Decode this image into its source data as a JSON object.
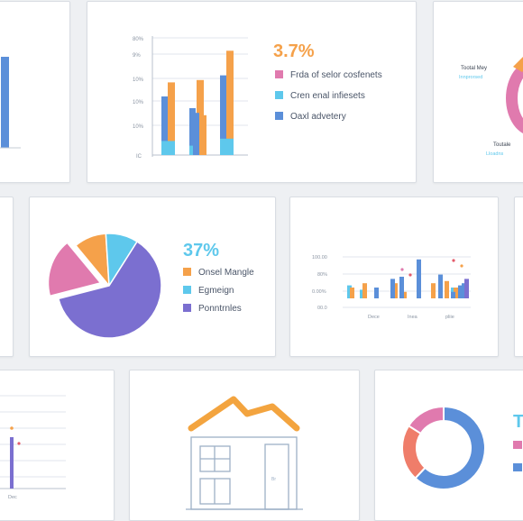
{
  "colors": {
    "orange": "#f5a14a",
    "blue": "#5b8fd9",
    "cyan": "#5ec8ec",
    "pink": "#e07aae",
    "purple": "#7b6fd0",
    "coral": "#ef7d6a",
    "red": "#e45b6a",
    "house_orange": "#f3a43f",
    "house_line": "#9db0c6"
  },
  "chart_data": [
    {
      "type": "bar",
      "panel": "top-left (cropped)",
      "values": [
        100
      ],
      "series": [
        {
          "values": [
            100
          ]
        }
      ]
    },
    {
      "type": "bar",
      "panel": "top-center",
      "title": "3.7%",
      "yticks": [
        "80%",
        "9%",
        "10%",
        "10%",
        "10%",
        "IC"
      ],
      "series": [
        {
          "name": "Frda of selor cosfenets",
          "color": "orange",
          "values": [
            62,
            64,
            34,
            89
          ]
        },
        {
          "name": "Cren enal infiesets",
          "color": "cyan",
          "values": [
            12,
            8,
            0,
            14
          ]
        },
        {
          "name": "Oaxl advetery",
          "color": "blue",
          "values": [
            50,
            40,
            36,
            68
          ]
        }
      ],
      "legend": "right"
    },
    {
      "type": "pie",
      "panel": "top-right (cropped)",
      "labels": [
        "Tootal Mey",
        "Innprorsed",
        "Toutale",
        "Lloadns"
      ],
      "colors": [
        "pink",
        "orange"
      ]
    },
    {
      "type": "pie",
      "panel": "middle-left",
      "title": "37%",
      "slices": [
        {
          "name": "Onsel Mangle",
          "color": "orange",
          "value": 10
        },
        {
          "name": "Egmeign",
          "color": "cyan",
          "value": 10
        },
        {
          "name": "Ponntrnles",
          "color": "purple",
          "value": 62
        },
        {
          "name": "",
          "color": "pink",
          "value": 18
        }
      ],
      "legend": "right"
    },
    {
      "type": "bar",
      "panel": "middle-center",
      "yticks": [
        "100.00",
        "80%",
        "0.00%",
        "00.0"
      ],
      "xticks": [
        "Dece",
        "Inea",
        "pliie"
      ],
      "series": [
        {
          "name": "cyan",
          "color": "cyan",
          "values": [
            12,
            8,
            0,
            10,
            0,
            0,
            0,
            0,
            0,
            10,
            0,
            0,
            0
          ]
        },
        {
          "name": "orange",
          "color": "orange",
          "values": [
            10,
            14,
            0,
            14,
            6,
            0,
            14,
            0,
            16,
            10,
            8,
            0,
            0
          ]
        },
        {
          "name": "blue",
          "color": "blue",
          "values": [
            0,
            0,
            10,
            18,
            20,
            36,
            0,
            22,
            0,
            6,
            12,
            14,
            0
          ]
        },
        {
          "name": "purple",
          "color": "purple",
          "values": [
            0,
            0,
            0,
            0,
            0,
            0,
            0,
            0,
            0,
            0,
            0,
            0,
            18
          ]
        }
      ]
    },
    {
      "type": "bar",
      "panel": "bottom-left (cropped)",
      "xticks": [
        "Dec"
      ],
      "series": [
        {
          "values": [
            57
          ]
        }
      ]
    },
    {
      "type": "area",
      "panel": "bottom-center",
      "title": "",
      "x": [
        1,
        2,
        3,
        4,
        5
      ],
      "values": [
        4,
        8,
        5,
        7,
        5
      ]
    },
    {
      "type": "pie",
      "panel": "bottom-right (cropped)",
      "title": "T",
      "slices": [
        {
          "name": "",
          "color": "blue",
          "value": 62
        },
        {
          "name": "",
          "color": "coral",
          "value": 22
        },
        {
          "name": "",
          "color": "pink",
          "value": 16
        }
      ]
    }
  ],
  "texts": {
    "panel2_big": "3.7%",
    "panel2_legend": [
      "Frda of selor cosfenets",
      "Cren enal infiesets",
      "Oaxl advetery"
    ],
    "panel2_yticks": [
      "80%",
      "9%",
      "10%",
      "10%",
      "10%",
      "IC"
    ],
    "panel3_labels": [
      "Tootal Mey",
      "Innprorsed",
      "Toutale",
      "Lloadns"
    ],
    "panel4_big": "37%",
    "panel4_legend": [
      "Onsel Mangle",
      "Egmeign",
      "Ponntrnles"
    ],
    "panel5_yticks": [
      "100.00",
      "80%",
      "0.00%",
      "00.0"
    ],
    "panel5_xticks": [
      "Dece",
      "Inea",
      "pliie"
    ],
    "panel6_xtick": "Dec",
    "panel7_label": "Br",
    "panel8_big": "T"
  }
}
